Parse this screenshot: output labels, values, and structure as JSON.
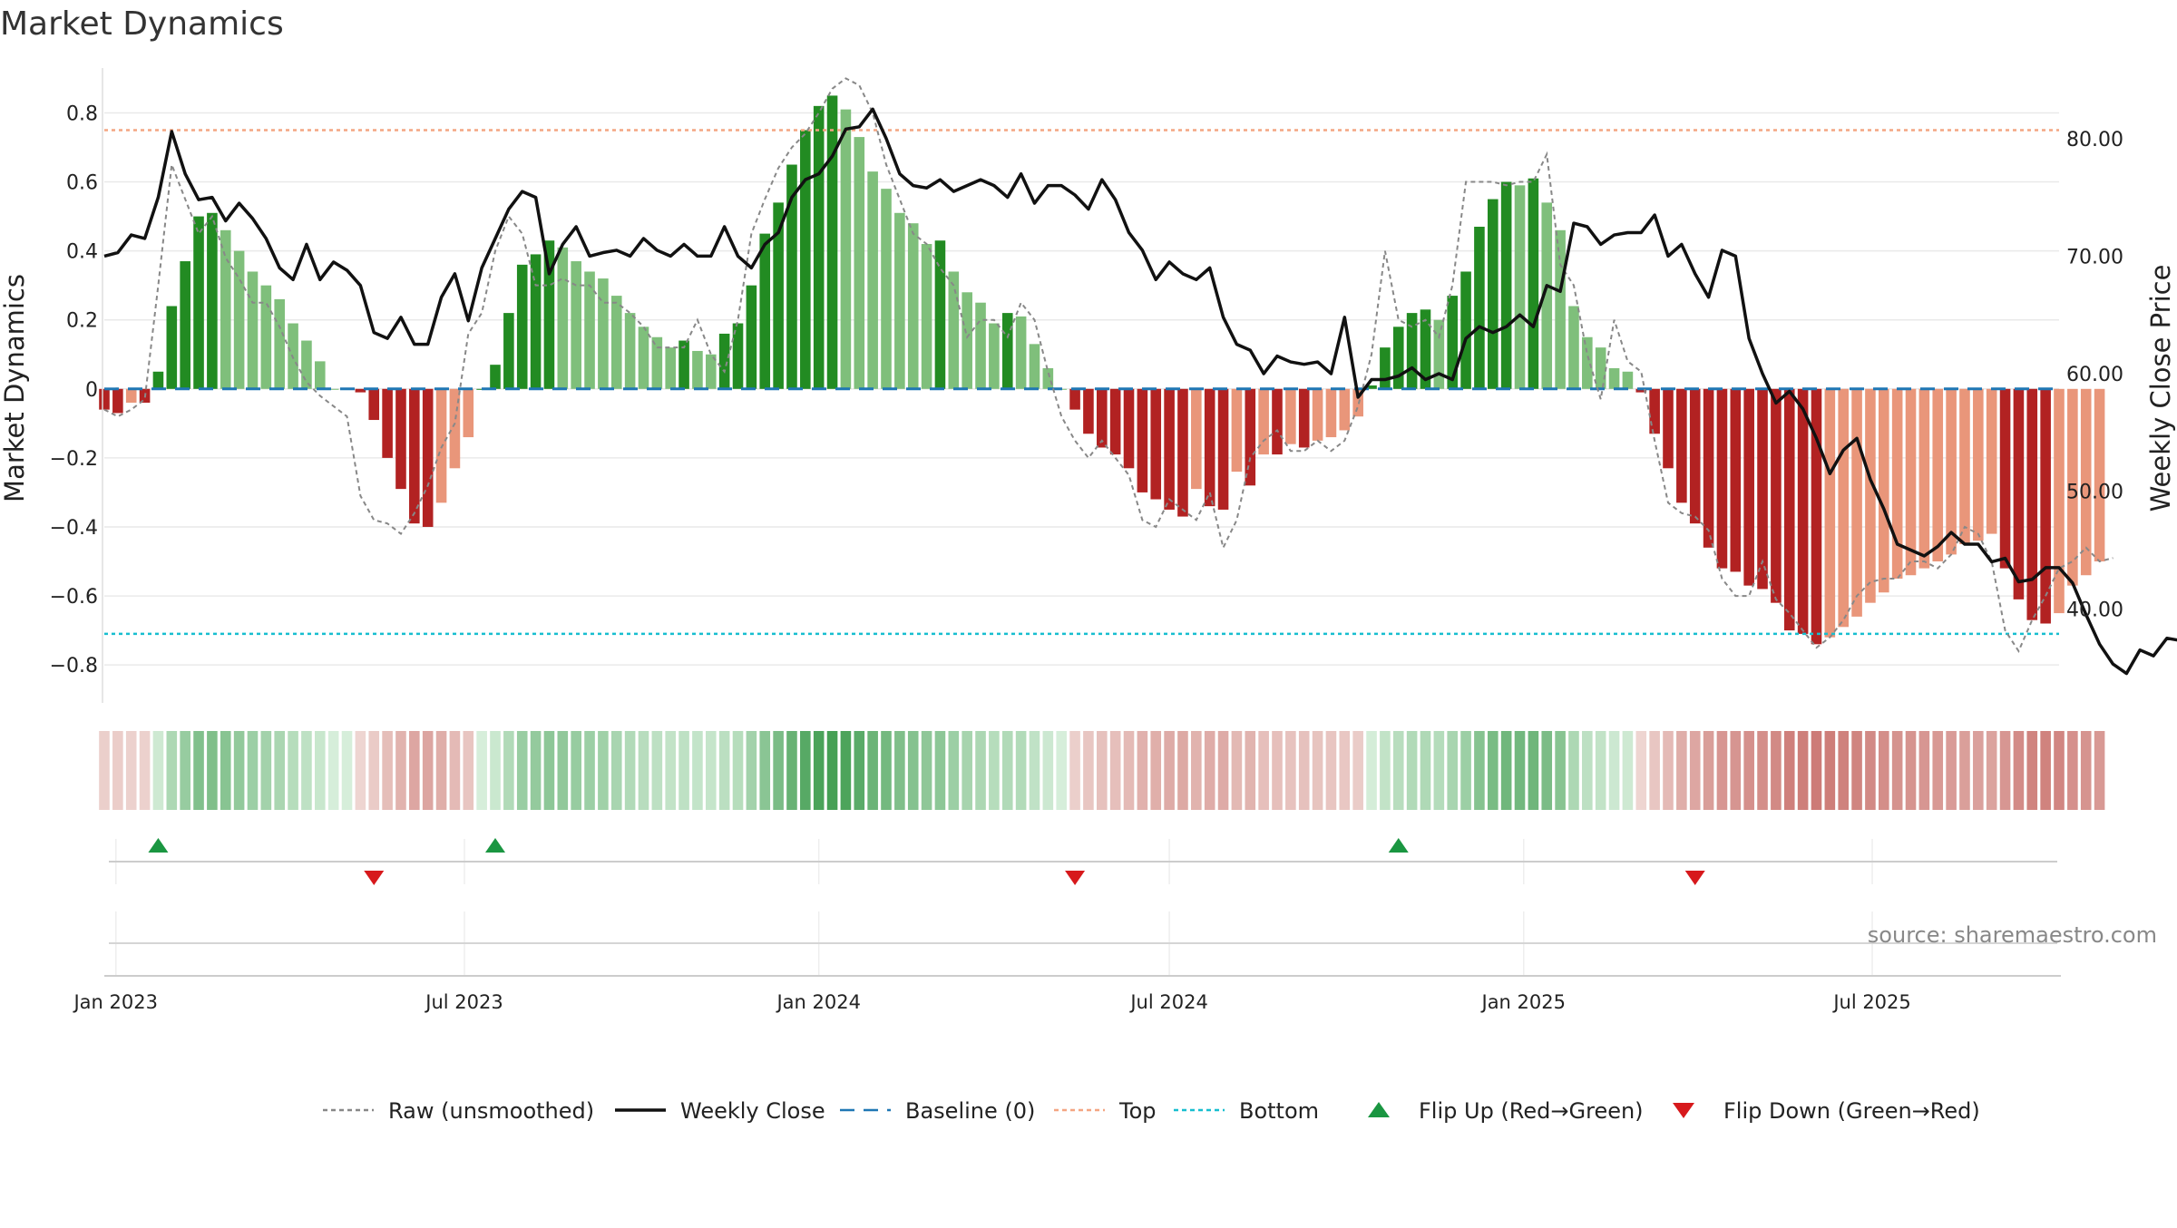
{
  "chart_data": {
    "type": "bar",
    "title": "Market Dynamics",
    "ylabel": "Market Dynamics",
    "y2label": "Weekly Close Price",
    "source": "source: sharemaestro.com",
    "ylim": [
      -0.91,
      0.93
    ],
    "y2lim": [
      32.0,
      86.0
    ],
    "yticks": [
      0.8,
      0.6,
      0.4,
      0.2,
      0,
      -0.2,
      -0.4,
      -0.6,
      -0.8
    ],
    "ytick_labels": [
      "0.8",
      "0.6",
      "0.4",
      "0.2",
      "0",
      "−0.2",
      "−0.4",
      "−0.6",
      "−0.8"
    ],
    "y2ticks": [
      80,
      70,
      60,
      50,
      40
    ],
    "y2tick_labels": [
      "80.00",
      "70.00",
      "60.00",
      "50.00",
      "40.00"
    ],
    "x_start": "2022-12-26",
    "x_end": "2025-10-06",
    "x_step_days": 7,
    "xticks": [
      {
        "date": "2023-01-01",
        "label": "Jan 2023"
      },
      {
        "date": "2023-07-01",
        "label": "Jul 2023"
      },
      {
        "date": "2024-01-01",
        "label": "Jan 2024"
      },
      {
        "date": "2024-07-01",
        "label": "Jul 2024"
      },
      {
        "date": "2025-01-01",
        "label": "Jan 2025"
      },
      {
        "date": "2025-07-01",
        "label": "Jul 2025"
      }
    ],
    "top_line": 0.75,
    "bottom_line": -0.71,
    "baseline": 0,
    "legend": [
      {
        "label": "Raw (unsmoothed)",
        "kind": "dotted",
        "color": "#888888"
      },
      {
        "label": "Weekly Close",
        "kind": "solid",
        "color": "#111111"
      },
      {
        "label": "Baseline (0)",
        "kind": "dashed",
        "color": "#1f77b4"
      },
      {
        "label": "Top",
        "kind": "dotted",
        "color": "#f4a582"
      },
      {
        "label": "Bottom",
        "kind": "dotted",
        "color": "#17becf"
      },
      {
        "label": "Flip Up (Red→Green)",
        "kind": "tri-up",
        "color": "#1a9641"
      },
      {
        "label": "Flip Down (Green→Red)",
        "kind": "tri-down",
        "color": "#d7191c"
      }
    ],
    "colors": {
      "strong_green": "#228b22",
      "light_green": "#7fbf7b",
      "strong_red": "#b22222",
      "light_red": "#e9967a",
      "raw": "#888888",
      "close": "#111111",
      "baseline": "#1f77b4",
      "top": "#f4a582",
      "bottom": "#17becf",
      "flip_up": "#1a9641",
      "flip_down": "#d7191c"
    },
    "bars": [
      -0.06,
      -0.07,
      -0.04,
      -0.04,
      0.05,
      0.24,
      0.37,
      0.5,
      0.51,
      0.46,
      0.4,
      0.34,
      0.3,
      0.26,
      0.19,
      0.14,
      0.08,
      0,
      0,
      -0.01,
      -0.09,
      -0.2,
      -0.29,
      -0.39,
      -0.4,
      -0.33,
      -0.23,
      -0.14,
      0,
      0.07,
      0.22,
      0.36,
      0.39,
      0.43,
      0.41,
      0.37,
      0.34,
      0.32,
      0.27,
      0.22,
      0.18,
      0.15,
      0.12,
      0.14,
      0.11,
      0.1,
      0.16,
      0.19,
      0.3,
      0.45,
      0.54,
      0.65,
      0.75,
      0.82,
      0.85,
      0.81,
      0.73,
      0.63,
      0.58,
      0.51,
      0.48,
      0.42,
      0.43,
      0.34,
      0.28,
      0.25,
      0.19,
      0.22,
      0.21,
      0.13,
      0.06,
      0,
      -0.06,
      -0.13,
      -0.17,
      -0.19,
      -0.23,
      -0.3,
      -0.32,
      -0.35,
      -0.37,
      -0.29,
      -0.34,
      -0.35,
      -0.24,
      -0.28,
      -0.19,
      -0.19,
      -0.16,
      -0.17,
      -0.15,
      -0.14,
      -0.12,
      -0.08,
      0.01,
      0.12,
      0.18,
      0.22,
      0.23,
      0.2,
      0.27,
      0.34,
      0.47,
      0.55,
      0.6,
      0.59,
      0.61,
      0.54,
      0.46,
      0.24,
      0.15,
      0.12,
      0.06,
      0.05,
      -0.01,
      -0.13,
      -0.23,
      -0.33,
      -0.39,
      -0.46,
      -0.52,
      -0.53,
      -0.57,
      -0.58,
      -0.62,
      -0.7,
      -0.71,
      -0.74,
      -0.72,
      -0.69,
      -0.66,
      -0.62,
      -0.59,
      -0.55,
      -0.54,
      -0.52,
      -0.5,
      -0.48,
      -0.45,
      -0.44,
      -0.42,
      -0.52,
      -0.61,
      -0.67,
      -0.68,
      -0.65,
      -0.57,
      -0.54,
      -0.5
    ],
    "close": [
      70.0,
      70.3,
      71.8,
      71.5,
      75.0,
      80.6,
      77.0,
      74.8,
      75.0,
      73.0,
      74.5,
      73.2,
      71.5,
      69.0,
      68.0,
      71.0,
      68.0,
      69.5,
      68.8,
      67.5,
      63.5,
      63.0,
      64.8,
      62.5,
      62.5,
      66.5,
      68.5,
      64.5,
      69.0,
      71.5,
      74.0,
      75.5,
      75.0,
      68.5,
      71.0,
      72.5,
      70.0,
      70.3,
      70.5,
      70.0,
      71.5,
      70.5,
      70.0,
      71.0,
      70.0,
      70.0,
      72.5,
      70.0,
      69.0,
      71.0,
      72.0,
      75.0,
      76.5,
      77.0,
      78.5,
      80.8,
      81.0,
      82.5,
      80.0,
      77.0,
      76.0,
      75.8,
      76.5,
      75.5,
      76.0,
      76.5,
      76.0,
      75.0,
      77.0,
      74.5,
      76.0,
      76.0,
      75.2,
      74.0,
      76.5,
      74.8,
      72.0,
      70.5,
      68.0,
      69.5,
      68.5,
      68.0,
      69.0,
      64.8,
      62.5,
      62.0,
      60.0,
      61.5,
      61.0,
      60.8,
      61.0,
      60.0,
      64.8,
      58.0,
      59.5,
      59.5,
      59.8,
      60.5,
      59.5,
      60.0,
      59.5,
      63.0,
      64.0,
      63.5,
      64.0,
      65.0,
      64.0,
      67.5,
      67.0,
      72.8,
      72.5,
      71.0,
      71.8,
      72.0,
      72.0,
      73.5,
      70.0,
      71.0,
      68.5,
      66.5,
      70.5,
      70.0,
      63.0,
      60.0,
      57.5,
      58.5,
      57.0,
      54.5,
      51.5,
      53.5,
      54.5,
      51.0,
      48.5,
      45.5,
      45.0,
      44.5,
      45.3,
      46.5,
      45.5,
      45.5,
      44.0,
      44.3,
      42.3,
      42.5,
      43.5,
      43.5,
      42.2,
      39.5,
      37.0,
      35.3,
      34.5,
      36.5,
      36.0,
      37.5,
      37.3,
      35.8,
      34.8
    ],
    "raw": [
      -0.06,
      -0.08,
      -0.06,
      -0.03,
      0.3,
      0.65,
      0.55,
      0.45,
      0.5,
      0.38,
      0.32,
      0.25,
      0.25,
      0.18,
      0.09,
      0.02,
      -0.02,
      -0.05,
      -0.08,
      -0.31,
      -0.38,
      -0.39,
      -0.42,
      -0.36,
      -0.28,
      -0.17,
      -0.1,
      0.16,
      0.22,
      0.4,
      0.5,
      0.45,
      0.3,
      0.3,
      0.32,
      0.3,
      0.3,
      0.25,
      0.25,
      0.22,
      0.18,
      0.12,
      0.12,
      0.12,
      0.2,
      0.1,
      0.05,
      0.2,
      0.45,
      0.55,
      0.64,
      0.7,
      0.74,
      0.8,
      0.87,
      0.9,
      0.88,
      0.8,
      0.65,
      0.55,
      0.45,
      0.42,
      0.35,
      0.3,
      0.15,
      0.2,
      0.2,
      0.15,
      0.25,
      0.2,
      0.05,
      -0.08,
      -0.15,
      -0.2,
      -0.15,
      -0.2,
      -0.25,
      -0.38,
      -0.4,
      -0.32,
      -0.35,
      -0.38,
      -0.3,
      -0.46,
      -0.38,
      -0.2,
      -0.15,
      -0.12,
      -0.18,
      -0.18,
      -0.15,
      -0.18,
      -0.15,
      -0.05,
      0.1,
      0.4,
      0.2,
      0.18,
      0.2,
      0.15,
      0.3,
      0.6,
      0.6,
      0.6,
      0.59,
      0.6,
      0.6,
      0.68,
      0.36,
      0.3,
      0.1,
      -0.03,
      0.2,
      0.08,
      0.05,
      -0.15,
      -0.33,
      -0.36,
      -0.37,
      -0.41,
      -0.55,
      -0.6,
      -0.6,
      -0.5,
      -0.61,
      -0.65,
      -0.7,
      -0.75,
      -0.72,
      -0.67,
      -0.6,
      -0.56,
      -0.55,
      -0.55,
      -0.5,
      -0.5,
      -0.52,
      -0.48,
      -0.4,
      -0.42,
      -0.5,
      -0.7,
      -0.76,
      -0.67,
      -0.6,
      -0.52,
      -0.5,
      -0.46,
      -0.5,
      -0.49
    ],
    "flip_up": [
      4,
      29,
      96
    ],
    "flip_down": [
      20,
      72,
      118
    ]
  }
}
